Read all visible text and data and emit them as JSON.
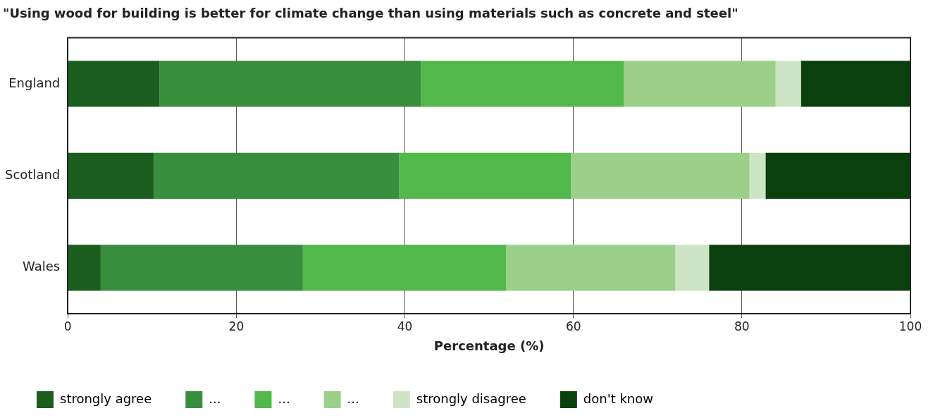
{
  "chart_data": {
    "type": "bar",
    "orientation": "horizontal",
    "stacked": true,
    "title": "\"Using wood for building is better for climate change than using materials such as concrete and steel\"",
    "xlabel": "Percentage (%)",
    "categories": [
      "England",
      "Scotland",
      "Wales"
    ],
    "series": [
      {
        "name": "strongly agree",
        "color": "#1b5e20",
        "values": [
          10.9,
          10.2,
          3.9
        ]
      },
      {
        "name": "...",
        "color": "#388e3c",
        "values": [
          31.0,
          29.1,
          24.0
        ]
      },
      {
        "name": "...",
        "color": "#52b84a",
        "values": [
          24.1,
          20.4,
          24.1
        ]
      },
      {
        "name": "...",
        "color": "#9ccf8a",
        "values": [
          18.0,
          21.2,
          20.1
        ]
      },
      {
        "name": "strongly disagree",
        "color": "#cde5c5",
        "values": [
          3.0,
          1.9,
          4.0
        ]
      },
      {
        "name": "don't know",
        "color": "#0b3f0b",
        "values": [
          13.0,
          17.2,
          23.9
        ]
      }
    ],
    "xlim": [
      0,
      100
    ],
    "xticks": [
      0,
      20,
      40,
      60,
      80,
      100
    ],
    "grid": "x",
    "legend": "bottom"
  }
}
